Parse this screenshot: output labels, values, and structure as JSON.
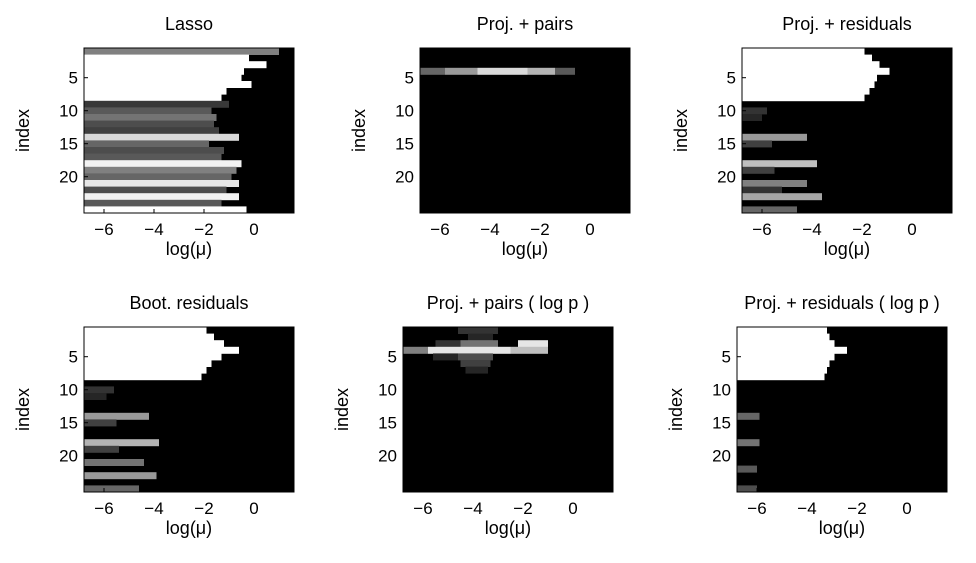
{
  "chart_data": [
    {
      "type": "heatmap",
      "title": "Lasso",
      "xlabel": "log(μ)",
      "ylabel": "index",
      "xlim": [
        -6.8,
        1.6
      ],
      "ylim": [
        1,
        25
      ],
      "xticks": [
        -6,
        -4,
        -2,
        0
      ],
      "xtick_labels": [
        "−6",
        "−4",
        "−2",
        "0"
      ],
      "yticks": [
        5,
        10,
        15,
        20
      ],
      "ytick_labels": [
        "5",
        "10",
        "15",
        "20"
      ],
      "colormap": "gray",
      "rows": [
        {
          "index": 1,
          "segs": [
            [
              -6.8,
              1.0,
              0.5
            ]
          ]
        },
        {
          "index": 2,
          "segs": [
            [
              -6.8,
              -0.2,
              1.0
            ]
          ]
        },
        {
          "index": 3,
          "segs": [
            [
              -6.8,
              0.5,
              1.0
            ]
          ]
        },
        {
          "index": 4,
          "segs": [
            [
              -6.8,
              -0.4,
              1.0
            ]
          ]
        },
        {
          "index": 5,
          "segs": [
            [
              -6.8,
              -0.5,
              1.0
            ]
          ]
        },
        {
          "index": 6,
          "segs": [
            [
              -6.8,
              -0.1,
              1.0
            ]
          ]
        },
        {
          "index": 7,
          "segs": [
            [
              -6.8,
              -1.1,
              1.0
            ]
          ]
        },
        {
          "index": 8,
          "segs": [
            [
              -6.8,
              -1.3,
              1.0
            ]
          ]
        },
        {
          "index": 9,
          "segs": [
            [
              -6.8,
              -1.0,
              0.22
            ]
          ]
        },
        {
          "index": 10,
          "segs": [
            [
              -6.8,
              -1.7,
              0.35
            ]
          ]
        },
        {
          "index": 11,
          "segs": [
            [
              -6.8,
              -1.5,
              0.45
            ]
          ]
        },
        {
          "index": 12,
          "segs": [
            [
              -6.8,
              -1.6,
              0.3
            ]
          ]
        },
        {
          "index": 13,
          "segs": [
            [
              -6.8,
              -1.4,
              0.25
            ]
          ]
        },
        {
          "index": 14,
          "segs": [
            [
              -6.8,
              -0.6,
              0.85
            ]
          ]
        },
        {
          "index": 15,
          "segs": [
            [
              -6.8,
              -1.8,
              0.4
            ]
          ]
        },
        {
          "index": 16,
          "segs": [
            [
              -6.8,
              -1.2,
              0.3
            ]
          ]
        },
        {
          "index": 17,
          "segs": [
            [
              -6.8,
              -1.3,
              0.35
            ]
          ]
        },
        {
          "index": 18,
          "segs": [
            [
              -6.8,
              -0.5,
              0.95
            ]
          ]
        },
        {
          "index": 19,
          "segs": [
            [
              -6.8,
              -0.7,
              0.5
            ]
          ]
        },
        {
          "index": 20,
          "segs": [
            [
              -6.8,
              -0.9,
              0.4
            ]
          ]
        },
        {
          "index": 21,
          "segs": [
            [
              -6.8,
              -0.6,
              0.9
            ]
          ]
        },
        {
          "index": 22,
          "segs": [
            [
              -6.8,
              -1.1,
              0.3
            ]
          ]
        },
        {
          "index": 23,
          "segs": [
            [
              -6.8,
              -0.6,
              0.95
            ]
          ]
        },
        {
          "index": 24,
          "segs": [
            [
              -6.8,
              -1.3,
              0.35
            ]
          ]
        },
        {
          "index": 25,
          "segs": [
            [
              -6.8,
              -0.3,
              1.0
            ]
          ]
        }
      ]
    },
    {
      "type": "heatmap",
      "title": "Proj. + pairs",
      "xlabel": "log(μ)",
      "ylabel": "index",
      "xlim": [
        -6.8,
        1.6
      ],
      "ylim": [
        1,
        25
      ],
      "xticks": [
        -6,
        -4,
        -2,
        0
      ],
      "xtick_labels": [
        "−6",
        "−4",
        "−2",
        "0"
      ],
      "yticks": [
        5,
        10,
        15,
        20
      ],
      "ytick_labels": [
        "5",
        "10",
        "15",
        "20"
      ],
      "colormap": "gray",
      "rows": [
        {
          "index": 4,
          "segs": [
            [
              -6.8,
              -5.8,
              0.4
            ],
            [
              -5.8,
              -4.5,
              0.6
            ],
            [
              -4.5,
              -2.5,
              0.85
            ],
            [
              -2.5,
              -1.4,
              0.7
            ],
            [
              -1.4,
              -0.6,
              0.35
            ]
          ]
        }
      ]
    },
    {
      "type": "heatmap",
      "title": "Proj. + residuals",
      "xlabel": "log(μ)",
      "ylabel": "index",
      "xlim": [
        -6.8,
        1.6
      ],
      "ylim": [
        1,
        25
      ],
      "xticks": [
        -6,
        -4,
        -2,
        0
      ],
      "xtick_labels": [
        "−6",
        "−4",
        "−2",
        "0"
      ],
      "yticks": [
        5,
        10,
        15,
        20
      ],
      "ytick_labels": [
        "5",
        "10",
        "15",
        "20"
      ],
      "colormap": "gray",
      "rows": [
        {
          "index": 1,
          "segs": [
            [
              -6.8,
              -1.9,
              1.0
            ]
          ]
        },
        {
          "index": 2,
          "segs": [
            [
              -6.8,
              -1.6,
              1.0
            ]
          ]
        },
        {
          "index": 3,
          "segs": [
            [
              -6.8,
              -1.3,
              1.0
            ]
          ]
        },
        {
          "index": 4,
          "segs": [
            [
              -6.8,
              -0.9,
              1.0
            ]
          ]
        },
        {
          "index": 5,
          "segs": [
            [
              -6.8,
              -1.4,
              1.0
            ]
          ]
        },
        {
          "index": 6,
          "segs": [
            [
              -6.8,
              -1.5,
              1.0
            ]
          ]
        },
        {
          "index": 7,
          "segs": [
            [
              -6.8,
              -1.7,
              1.0
            ]
          ]
        },
        {
          "index": 8,
          "segs": [
            [
              -6.8,
              -1.9,
              1.0
            ]
          ]
        },
        {
          "index": 10,
          "segs": [
            [
              -6.8,
              -5.8,
              0.2
            ]
          ]
        },
        {
          "index": 11,
          "segs": [
            [
              -6.8,
              -6.0,
              0.15
            ]
          ]
        },
        {
          "index": 14,
          "segs": [
            [
              -6.8,
              -4.2,
              0.6
            ]
          ]
        },
        {
          "index": 15,
          "segs": [
            [
              -6.8,
              -5.6,
              0.25
            ]
          ]
        },
        {
          "index": 18,
          "segs": [
            [
              -6.8,
              -3.8,
              0.75
            ]
          ]
        },
        {
          "index": 19,
          "segs": [
            [
              -6.8,
              -5.5,
              0.25
            ]
          ]
        },
        {
          "index": 21,
          "segs": [
            [
              -6.8,
              -4.2,
              0.5
            ]
          ]
        },
        {
          "index": 22,
          "segs": [
            [
              -6.8,
              -5.2,
              0.2
            ]
          ]
        },
        {
          "index": 23,
          "segs": [
            [
              -6.8,
              -3.6,
              0.65
            ]
          ]
        },
        {
          "index": 25,
          "segs": [
            [
              -6.8,
              -4.6,
              0.4
            ]
          ]
        }
      ]
    },
    {
      "type": "heatmap",
      "title": "Boot. residuals",
      "xlabel": "log(μ)",
      "ylabel": "index",
      "xlim": [
        -6.8,
        1.6
      ],
      "ylim": [
        1,
        25
      ],
      "xticks": [
        -6,
        -4,
        -2,
        0
      ],
      "xtick_labels": [
        "−6",
        "−4",
        "−2",
        "0"
      ],
      "yticks": [
        5,
        10,
        15,
        20
      ],
      "ytick_labels": [
        "5",
        "10",
        "15",
        "20"
      ],
      "colormap": "gray",
      "rows": [
        {
          "index": 1,
          "segs": [
            [
              -6.8,
              -1.9,
              1.0
            ]
          ]
        },
        {
          "index": 2,
          "segs": [
            [
              -6.8,
              -1.6,
              1.0
            ]
          ]
        },
        {
          "index": 3,
          "segs": [
            [
              -6.8,
              -1.2,
              1.0
            ]
          ]
        },
        {
          "index": 4,
          "segs": [
            [
              -6.8,
              -0.6,
              1.0
            ]
          ]
        },
        {
          "index": 5,
          "segs": [
            [
              -6.8,
              -1.3,
              1.0
            ]
          ]
        },
        {
          "index": 6,
          "segs": [
            [
              -6.8,
              -1.7,
              1.0
            ]
          ]
        },
        {
          "index": 7,
          "segs": [
            [
              -6.8,
              -1.9,
              1.0
            ]
          ]
        },
        {
          "index": 8,
          "segs": [
            [
              -6.8,
              -2.1,
              1.0
            ]
          ]
        },
        {
          "index": 10,
          "segs": [
            [
              -6.8,
              -5.6,
              0.2
            ]
          ]
        },
        {
          "index": 11,
          "segs": [
            [
              -6.8,
              -5.9,
              0.15
            ]
          ]
        },
        {
          "index": 14,
          "segs": [
            [
              -6.8,
              -4.2,
              0.6
            ]
          ]
        },
        {
          "index": 15,
          "segs": [
            [
              -6.8,
              -5.5,
              0.25
            ]
          ]
        },
        {
          "index": 18,
          "segs": [
            [
              -6.8,
              -3.8,
              0.7
            ]
          ]
        },
        {
          "index": 19,
          "segs": [
            [
              -6.8,
              -5.4,
              0.25
            ]
          ]
        },
        {
          "index": 21,
          "segs": [
            [
              -6.8,
              -4.4,
              0.45
            ]
          ]
        },
        {
          "index": 23,
          "segs": [
            [
              -6.8,
              -3.9,
              0.6
            ]
          ]
        },
        {
          "index": 25,
          "segs": [
            [
              -6.8,
              -4.6,
              0.4
            ]
          ]
        }
      ]
    },
    {
      "type": "heatmap",
      "title": "Proj. + pairs ( log p )",
      "xlabel": "log(μ)",
      "ylabel": "index",
      "xlim": [
        -6.8,
        1.6
      ],
      "ylim": [
        1,
        25
      ],
      "xticks": [
        -6,
        -4,
        -2,
        0
      ],
      "xtick_labels": [
        "−6",
        "−4",
        "−2",
        "0"
      ],
      "yticks": [
        5,
        10,
        15,
        20
      ],
      "ytick_labels": [
        "5",
        "10",
        "15",
        "20"
      ],
      "colormap": "gray",
      "rows": [
        {
          "index": 1,
          "segs": [
            [
              -4.6,
              -3.0,
              0.2
            ]
          ]
        },
        {
          "index": 2,
          "segs": [
            [
              -4.2,
              -3.2,
              0.15
            ]
          ]
        },
        {
          "index": 3,
          "segs": [
            [
              -5.5,
              -4.5,
              0.2
            ],
            [
              -4.5,
              -3.0,
              0.45
            ],
            [
              -2.2,
              -1.0,
              0.9
            ]
          ]
        },
        {
          "index": 4,
          "segs": [
            [
              -6.8,
              -5.8,
              0.5
            ],
            [
              -5.8,
              -2.5,
              0.9
            ],
            [
              -2.5,
              -1.0,
              0.75
            ]
          ]
        },
        {
          "index": 5,
          "segs": [
            [
              -5.6,
              -4.6,
              0.15
            ],
            [
              -4.6,
              -3.2,
              0.3
            ]
          ]
        },
        {
          "index": 6,
          "segs": [
            [
              -4.5,
              -3.3,
              0.25
            ]
          ]
        },
        {
          "index": 7,
          "segs": [
            [
              -4.3,
              -3.4,
              0.15
            ]
          ]
        }
      ]
    },
    {
      "type": "heatmap",
      "title": "Proj. + residuals ( log p )",
      "xlabel": "log(μ)",
      "ylabel": "index",
      "xlim": [
        -6.8,
        1.6
      ],
      "ylim": [
        1,
        25
      ],
      "xticks": [
        -6,
        -4,
        -2,
        0
      ],
      "xtick_labels": [
        "−6",
        "−4",
        "−2",
        "0"
      ],
      "yticks": [
        5,
        10,
        15,
        20
      ],
      "ytick_labels": [
        "5",
        "10",
        "15",
        "20"
      ],
      "colormap": "gray",
      "rows": [
        {
          "index": 1,
          "segs": [
            [
              -6.8,
              -3.2,
              1.0
            ]
          ]
        },
        {
          "index": 2,
          "segs": [
            [
              -6.8,
              -3.1,
              1.0
            ]
          ]
        },
        {
          "index": 3,
          "segs": [
            [
              -6.8,
              -2.9,
              1.0
            ]
          ]
        },
        {
          "index": 4,
          "segs": [
            [
              -6.8,
              -2.4,
              1.0
            ]
          ]
        },
        {
          "index": 5,
          "segs": [
            [
              -6.8,
              -2.9,
              1.0
            ]
          ]
        },
        {
          "index": 6,
          "segs": [
            [
              -6.8,
              -3.1,
              1.0
            ]
          ]
        },
        {
          "index": 7,
          "segs": [
            [
              -6.8,
              -3.2,
              1.0
            ]
          ]
        },
        {
          "index": 8,
          "segs": [
            [
              -6.8,
              -3.3,
              1.0
            ]
          ]
        },
        {
          "index": 14,
          "segs": [
            [
              -6.8,
              -5.9,
              0.4
            ]
          ]
        },
        {
          "index": 18,
          "segs": [
            [
              -6.8,
              -5.9,
              0.45
            ]
          ]
        },
        {
          "index": 22,
          "segs": [
            [
              -6.8,
              -6.0,
              0.35
            ]
          ]
        },
        {
          "index": 25,
          "segs": [
            [
              -6.8,
              -6.0,
              0.3
            ]
          ]
        }
      ]
    }
  ]
}
